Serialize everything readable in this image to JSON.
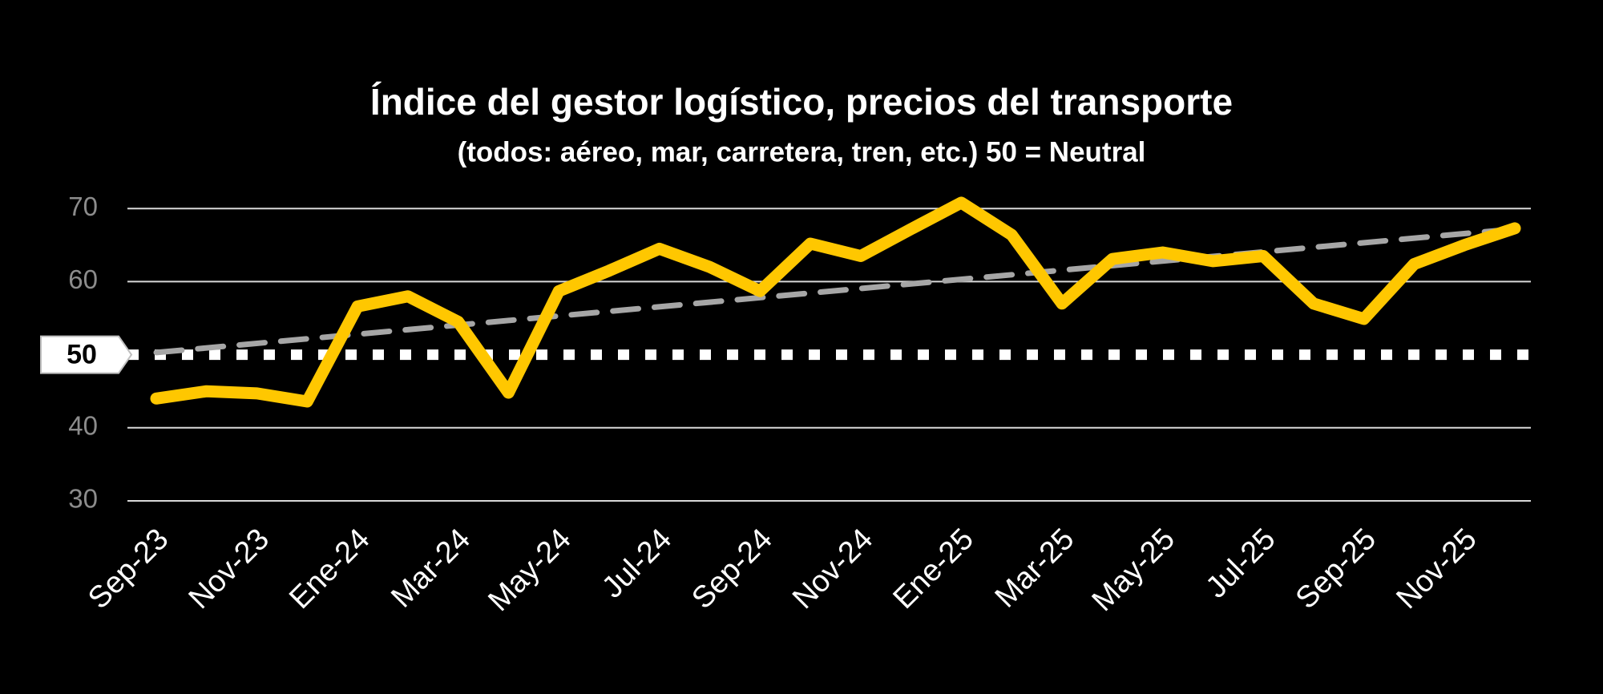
{
  "chart_data": {
    "type": "line",
    "title": "Índice del gestor logístico, precios del transporte",
    "subtitle": "(todos: aéreo, mar, carretera, tren, etc.) 50 = Neutral",
    "categories": [
      "Sep-23",
      null,
      "Nov-23",
      null,
      "Ene-24",
      null,
      "Mar-24",
      null,
      "May-24",
      null,
      "Jul-24",
      null,
      "Sep-24",
      null,
      "Nov-24",
      null,
      "Ene-25",
      null,
      "Mar-25",
      null,
      "May-25",
      null,
      "Jul-25",
      null,
      "Sep-25",
      null,
      "Nov-25",
      null
    ],
    "values": [
      44.0,
      45.0,
      44.7,
      43.6,
      56.6,
      58.0,
      54.5,
      44.8,
      58.7,
      61.5,
      64.5,
      62.0,
      58.7,
      65.2,
      63.5,
      67.2,
      70.8,
      66.4,
      57.0,
      63.1,
      64.0,
      62.8,
      63.5,
      57.0,
      54.9,
      62.4,
      65.0,
      67.3
    ],
    "color": "#FFC700",
    "trendline": {
      "start": 50.3,
      "end": 67.2,
      "color": "#A6A6A6"
    },
    "reference_line": {
      "value": 50,
      "color": "#FFFFFF"
    },
    "ylim": [
      30,
      72
    ],
    "yticks": [
      30,
      40,
      60,
      70
    ],
    "grid": true
  }
}
